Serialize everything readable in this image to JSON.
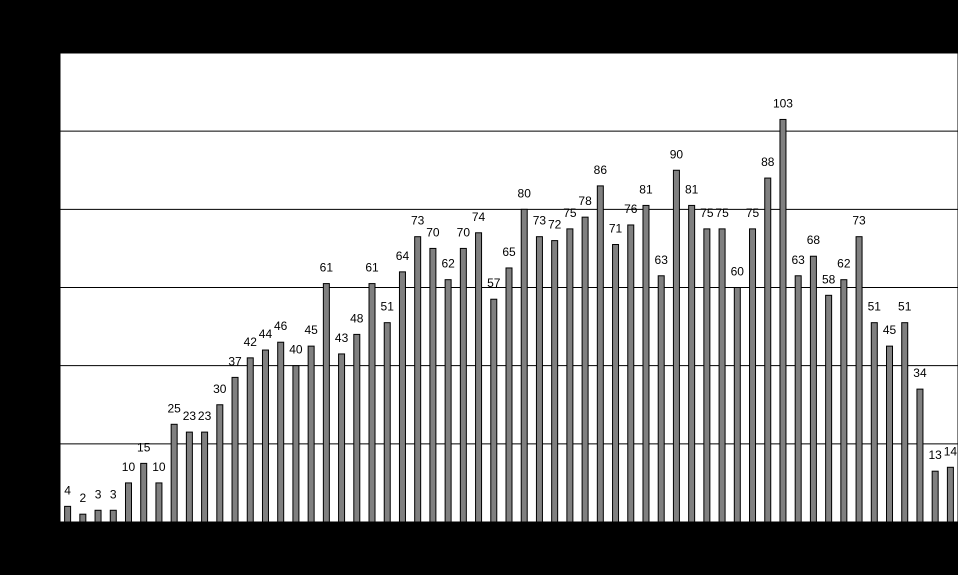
{
  "chart_data": {
    "type": "bar",
    "values": [
      4,
      2,
      3,
      3,
      10,
      15,
      10,
      25,
      23,
      23,
      30,
      37,
      42,
      44,
      46,
      40,
      45,
      61,
      43,
      48,
      61,
      51,
      64,
      73,
      70,
      62,
      70,
      74,
      57,
      65,
      80,
      73,
      72,
      75,
      78,
      86,
      71,
      76,
      81,
      63,
      90,
      81,
      75,
      75,
      60,
      75,
      88,
      103,
      63,
      68,
      58,
      62,
      73,
      51,
      45,
      51,
      34,
      13,
      14
    ],
    "color": "#808080",
    "ylim": [
      0,
      120
    ],
    "yticks": [
      0,
      20,
      40,
      60,
      80,
      100,
      120
    ],
    "grid": true
  }
}
